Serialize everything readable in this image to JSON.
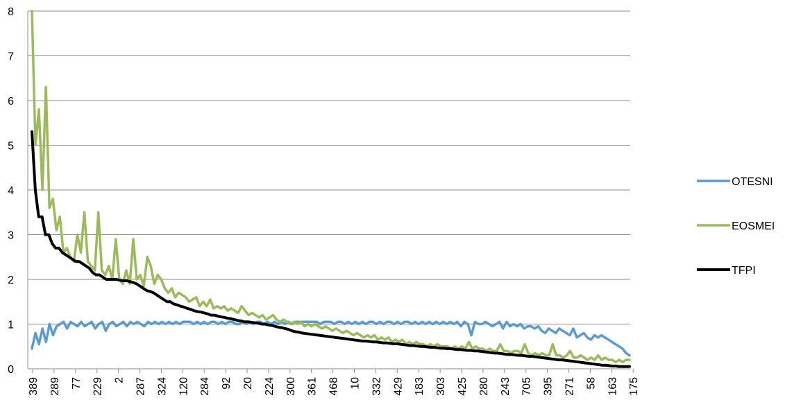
{
  "chart_data": {
    "type": "line",
    "title": "",
    "xlabel": "",
    "ylabel": "",
    "ylim": [
      0,
      8
    ],
    "yticks": [
      0,
      1,
      2,
      3,
      4,
      5,
      6,
      7,
      8
    ],
    "grid": "horizontal",
    "legend_position": "right",
    "x_tick_labels": [
      "389",
      "289",
      "77",
      "229",
      "2",
      "287",
      "324",
      "120",
      "284",
      "92",
      "20",
      "224",
      "300",
      "361",
      "468",
      "10",
      "332",
      "429",
      "183",
      "303",
      "425",
      "280",
      "243",
      "705",
      "395",
      "271",
      "58",
      "163",
      "175"
    ],
    "series": [
      {
        "name": "OTESNI",
        "color": "#5b9bd5",
        "values": [
          0.45,
          0.8,
          0.55,
          0.9,
          0.6,
          1.0,
          0.75,
          0.95,
          1.0,
          1.05,
          0.9,
          1.05,
          1.0,
          0.95,
          1.05,
          0.95,
          1.0,
          1.05,
          0.9,
          1.0,
          1.05,
          0.85,
          1.0,
          1.05,
          0.95,
          1.0,
          1.05,
          0.95,
          1.05,
          1.0,
          1.05,
          1.0,
          0.95,
          1.05,
          1.0,
          1.05,
          1.0,
          1.05,
          1.0,
          1.05,
          1.0,
          1.05,
          1.0,
          1.05,
          1.05,
          1.05,
          1.0,
          1.05,
          1.0,
          1.05,
          1.0,
          1.05,
          1.05,
          1.0,
          1.05,
          1.0,
          1.05,
          1.05,
          1.0,
          1.0,
          1.05,
          1.0,
          1.05,
          1.0,
          1.05,
          1.05,
          1.0,
          1.05,
          1.0,
          1.05,
          1.0,
          1.05,
          1.0,
          1.05,
          1.0,
          1.05,
          1.05,
          1.05,
          1.05,
          1.05,
          1.05,
          1.05,
          1.0,
          1.05,
          1.05,
          1.05,
          1.0,
          1.05,
          1.05,
          1.0,
          1.05,
          1.0,
          1.05,
          1.0,
          1.05,
          1.0,
          1.05,
          1.05,
          1.0,
          1.05,
          1.0,
          1.05,
          1.05,
          1.0,
          1.05,
          1.0,
          1.05,
          1.05,
          1.0,
          1.05,
          1.0,
          1.05,
          1.0,
          1.05,
          1.0,
          1.05,
          1.0,
          1.05,
          1.0,
          1.05,
          1.0,
          1.05,
          0.95,
          1.05,
          1.0,
          0.75,
          1.05,
          1.0,
          1.0,
          1.05,
          1.0,
          0.95,
          1.0,
          1.05,
          0.9,
          1.05,
          0.95,
          1.0,
          0.95,
          1.0,
          0.9,
          0.95,
          0.95,
          0.9,
          0.95,
          0.85,
          0.8,
          0.9,
          0.85,
          0.8,
          0.9,
          0.85,
          0.8,
          0.75,
          0.9,
          0.7,
          0.75,
          0.8,
          0.7,
          0.65,
          0.75,
          0.7,
          0.75,
          0.7,
          0.65,
          0.6,
          0.55,
          0.5,
          0.45,
          0.35,
          0.3
        ]
      },
      {
        "name": "EOSMEI",
        "color": "#9bbb59",
        "values": [
          8.0,
          5.0,
          5.8,
          4.0,
          6.3,
          3.6,
          3.8,
          3.1,
          3.4,
          2.6,
          2.7,
          2.5,
          2.4,
          3.0,
          2.6,
          3.5,
          2.4,
          2.3,
          2.2,
          3.5,
          2.2,
          2.1,
          2.3,
          2.0,
          2.9,
          2.0,
          1.9,
          2.2,
          1.9,
          2.9,
          2.0,
          2.1,
          1.85,
          2.5,
          2.3,
          1.9,
          2.1,
          2.0,
          1.8,
          1.7,
          1.8,
          1.6,
          1.7,
          1.65,
          1.6,
          1.5,
          1.55,
          1.6,
          1.4,
          1.5,
          1.4,
          1.55,
          1.35,
          1.4,
          1.35,
          1.4,
          1.3,
          1.35,
          1.3,
          1.25,
          1.4,
          1.3,
          1.2,
          1.25,
          1.2,
          1.15,
          1.2,
          1.1,
          1.15,
          1.2,
          1.1,
          1.05,
          1.1,
          1.05,
          1.0,
          1.05,
          1.0,
          1.05,
          0.95,
          1.0,
          0.95,
          1.0,
          0.95,
          0.9,
          0.95,
          0.9,
          0.85,
          0.9,
          0.85,
          0.8,
          0.85,
          0.8,
          0.75,
          0.8,
          0.75,
          0.7,
          0.75,
          0.7,
          0.75,
          0.65,
          0.7,
          0.65,
          0.7,
          0.6,
          0.65,
          0.6,
          0.65,
          0.55,
          0.6,
          0.55,
          0.6,
          0.55,
          0.55,
          0.5,
          0.55,
          0.5,
          0.55,
          0.5,
          0.5,
          0.5,
          0.45,
          0.5,
          0.45,
          0.5,
          0.45,
          0.6,
          0.45,
          0.5,
          0.45,
          0.45,
          0.4,
          0.45,
          0.4,
          0.4,
          0.55,
          0.4,
          0.4,
          0.35,
          0.4,
          0.4,
          0.35,
          0.55,
          0.35,
          0.3,
          0.35,
          0.3,
          0.35,
          0.3,
          0.3,
          0.55,
          0.3,
          0.3,
          0.25,
          0.3,
          0.4,
          0.25,
          0.25,
          0.3,
          0.25,
          0.2,
          0.25,
          0.2,
          0.3,
          0.2,
          0.25,
          0.2,
          0.2,
          0.15,
          0.2,
          0.15,
          0.2,
          0.2
        ]
      },
      {
        "name": "TFPI",
        "color": "#000000",
        "values": [
          5.3,
          4.0,
          3.4,
          3.4,
          3.0,
          3.0,
          2.8,
          2.7,
          2.7,
          2.6,
          2.55,
          2.5,
          2.45,
          2.4,
          2.4,
          2.35,
          2.3,
          2.25,
          2.15,
          2.1,
          2.1,
          2.05,
          2.0,
          2.0,
          2.0,
          2.0,
          1.98,
          1.97,
          1.97,
          1.95,
          1.93,
          1.9,
          1.85,
          1.8,
          1.75,
          1.73,
          1.7,
          1.65,
          1.6,
          1.55,
          1.5,
          1.5,
          1.45,
          1.43,
          1.4,
          1.38,
          1.35,
          1.33,
          1.3,
          1.28,
          1.27,
          1.25,
          1.23,
          1.2,
          1.2,
          1.18,
          1.16,
          1.15,
          1.13,
          1.12,
          1.1,
          1.08,
          1.07,
          1.05,
          1.05,
          1.04,
          1.03,
          1.02,
          1.0,
          1.0,
          0.98,
          0.97,
          0.95,
          0.93,
          0.92,
          0.9,
          0.88,
          0.85,
          0.83,
          0.82,
          0.8,
          0.79,
          0.78,
          0.77,
          0.76,
          0.75,
          0.74,
          0.73,
          0.72,
          0.71,
          0.7,
          0.69,
          0.68,
          0.67,
          0.66,
          0.65,
          0.64,
          0.63,
          0.62,
          0.62,
          0.61,
          0.6,
          0.6,
          0.59,
          0.58,
          0.58,
          0.57,
          0.56,
          0.56,
          0.55,
          0.54,
          0.53,
          0.52,
          0.52,
          0.51,
          0.5,
          0.5,
          0.49,
          0.48,
          0.48,
          0.47,
          0.46,
          0.46,
          0.45,
          0.45,
          0.44,
          0.43,
          0.43,
          0.42,
          0.41,
          0.41,
          0.4,
          0.4,
          0.39,
          0.38,
          0.37,
          0.36,
          0.35,
          0.35,
          0.34,
          0.33,
          0.32,
          0.32,
          0.31,
          0.3,
          0.3,
          0.29,
          0.28,
          0.28,
          0.27,
          0.26,
          0.25,
          0.24,
          0.23,
          0.22,
          0.21,
          0.2,
          0.2,
          0.19,
          0.18,
          0.17,
          0.16,
          0.15,
          0.14,
          0.13,
          0.12,
          0.11,
          0.1,
          0.09,
          0.08,
          0.08,
          0.07,
          0.06,
          0.06,
          0.05,
          0.05,
          0.05,
          0.05
        ]
      }
    ]
  }
}
